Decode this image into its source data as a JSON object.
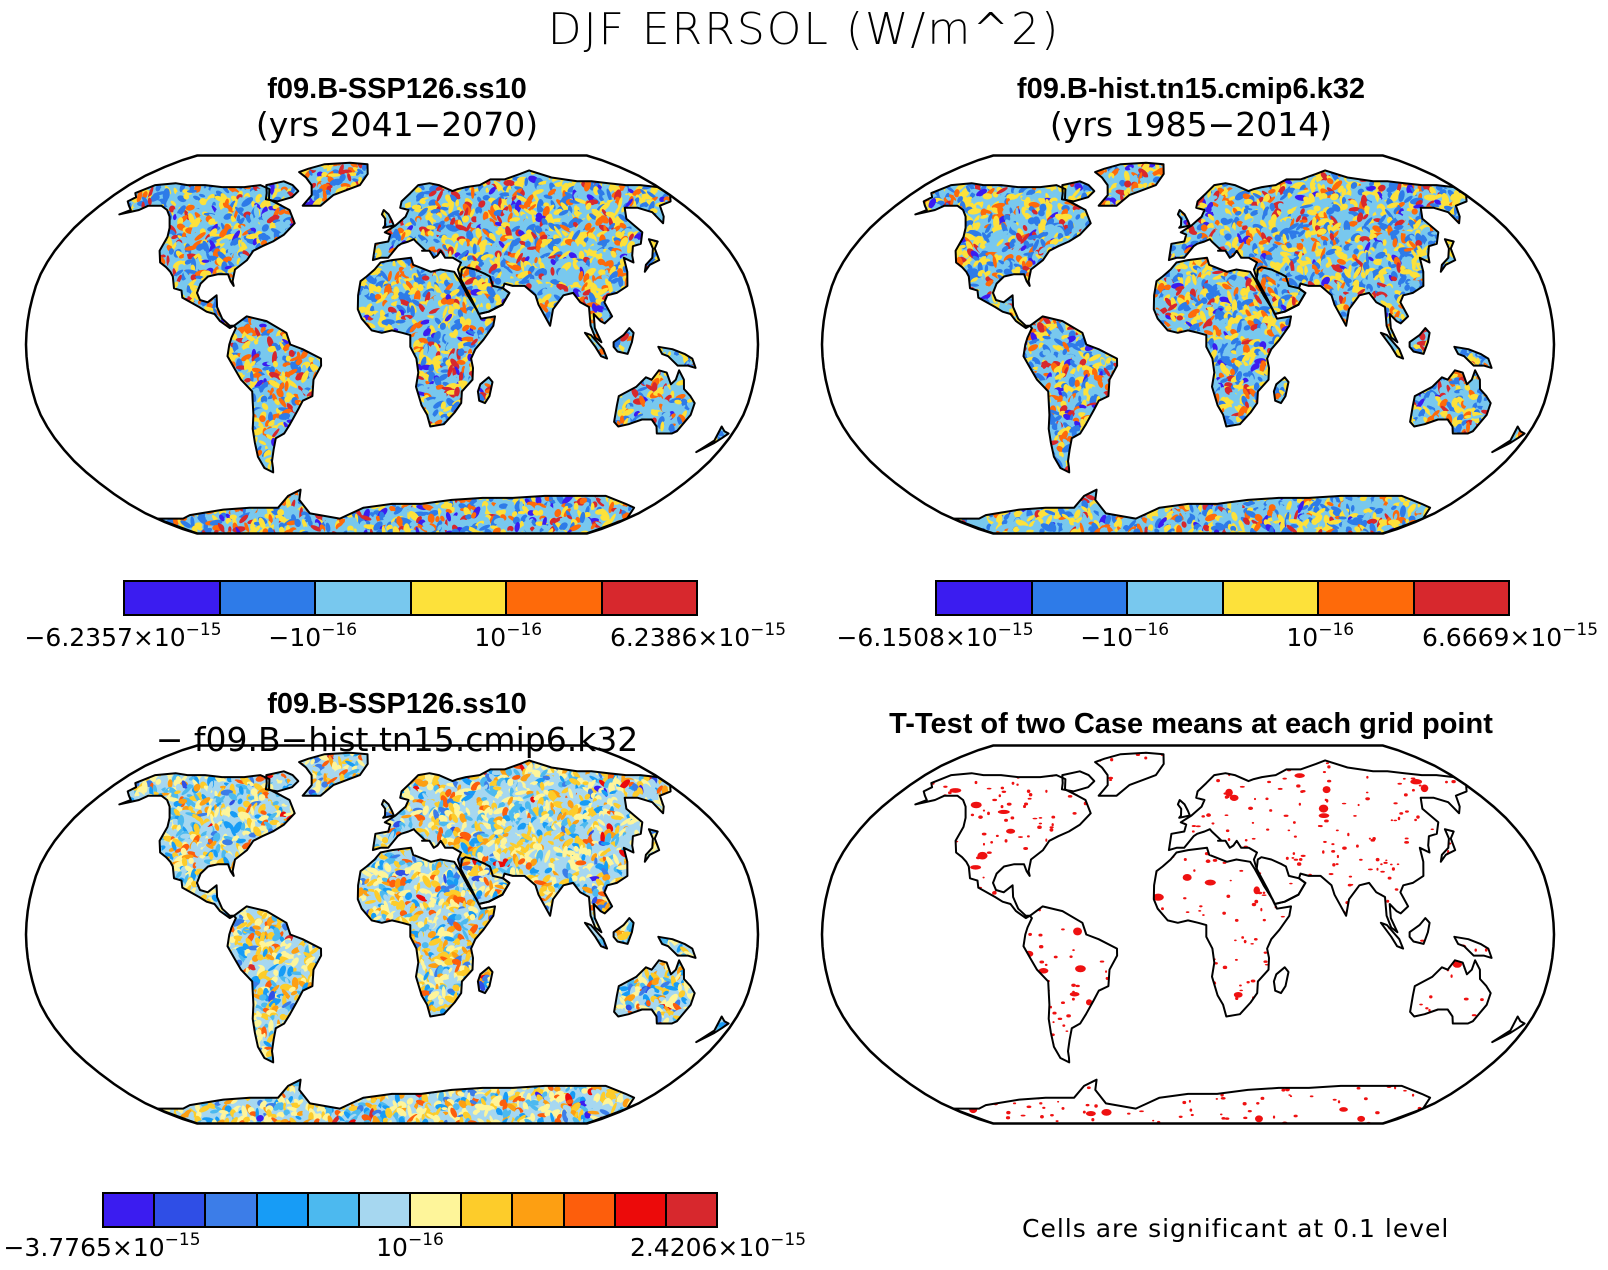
{
  "title": "DJF ERRSOL (W/m^2)",
  "panels": [
    {
      "line1": "f09.B-SSP126.ss10",
      "line2": "(yrs 2041−2070)",
      "colorbar": {
        "colors": [
          "#3b1cf0",
          "#2e7be8",
          "#78c8ee",
          "#fde13a",
          "#fe6a0a",
          "#d7282d"
        ],
        "ticks": [
          {
            "base": "−6.2357×10",
            "exp": "−15"
          },
          {
            "base": "−10",
            "exp": "−16"
          },
          {
            "base": "10",
            "exp": "−16"
          },
          {
            "base": "6.2386×10",
            "exp": "−15"
          }
        ]
      }
    },
    {
      "line1": "f09.B-hist.tn15.cmip6.k32",
      "line2": "(yrs 1985−2014)",
      "colorbar": {
        "colors": [
          "#3b1cf0",
          "#2e7be8",
          "#78c8ee",
          "#fde13a",
          "#fe6a0a",
          "#d7282d"
        ],
        "ticks": [
          {
            "base": "−6.1508×10",
            "exp": "−15"
          },
          {
            "base": "−10",
            "exp": "−16"
          },
          {
            "base": "10",
            "exp": "−16"
          },
          {
            "base": "6.6669×10",
            "exp": "−15"
          }
        ]
      }
    },
    {
      "line1": "f09.B-SSP126.ss10",
      "line2": "− f09.B−hist.tn15.cmip6.k32",
      "colorbar": {
        "colors": [
          "#3b1cf0",
          "#2f4ee6",
          "#3c7de8",
          "#179cf6",
          "#4cb9ef",
          "#a6d7f0",
          "#fef59a",
          "#fdcc2a",
          "#fd9f12",
          "#fd5e0c",
          "#ec0a0a",
          "#d7282d"
        ],
        "ticks": [
          {
            "base": "−3.7765×10",
            "exp": "−15"
          },
          {
            "base": "10",
            "exp": "−16"
          },
          {
            "base": "2.4206×10",
            "exp": "−15"
          }
        ]
      }
    },
    {
      "line1": "T-Test of two Case means at each grid point",
      "line2": "",
      "note": "Cells are significant at 0.1 level"
    }
  ]
}
